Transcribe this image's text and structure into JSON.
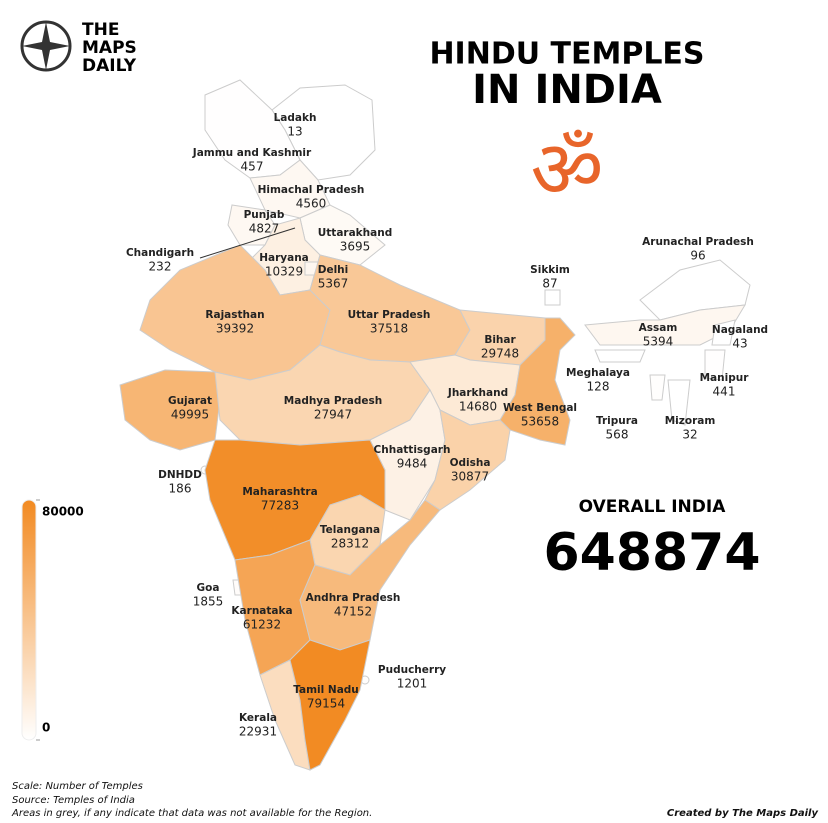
{
  "brand": {
    "line1": "THE",
    "line2": "MAPS",
    "line3": "DAILY"
  },
  "title": {
    "line1": "HINDU TEMPLES",
    "line2": "IN INDIA",
    "symbol": "ॐ"
  },
  "overall": {
    "label": "OVERALL INDIA",
    "value": 648874
  },
  "colorbar": {
    "min": 0,
    "max": 80000,
    "colors": [
      "#ffffff",
      "#f28a21"
    ]
  },
  "regions": [
    {
      "name": "Ladakh",
      "value": 13
    },
    {
      "name": "Jammu and Kashmir",
      "value": 457
    },
    {
      "name": "Himachal Pradesh",
      "value": 4560
    },
    {
      "name": "Punjab",
      "value": 4827
    },
    {
      "name": "Chandigarh",
      "value": 232
    },
    {
      "name": "Uttarakhand",
      "value": 3695
    },
    {
      "name": "Haryana",
      "value": 10329
    },
    {
      "name": "Delhi",
      "value": 5367
    },
    {
      "name": "Rajasthan",
      "value": 39392
    },
    {
      "name": "Uttar Pradesh",
      "value": 37518
    },
    {
      "name": "Bihar",
      "value": 29748
    },
    {
      "name": "Gujarat",
      "value": 49995
    },
    {
      "name": "Madhya Pradesh",
      "value": 27947
    },
    {
      "name": "Jharkhand",
      "value": 14680
    },
    {
      "name": "West Bengal",
      "value": 53658
    },
    {
      "name": "Chhattisgarh",
      "value": 9484
    },
    {
      "name": "Odisha",
      "value": 30877
    },
    {
      "name": "DNHDD",
      "value": 186
    },
    {
      "name": "Maharashtra",
      "value": 77283
    },
    {
      "name": "Telangana",
      "value": 28312
    },
    {
      "name": "Goa",
      "value": 1855
    },
    {
      "name": "Karnataka",
      "value": 61232
    },
    {
      "name": "Andhra Pradesh",
      "value": 47152
    },
    {
      "name": "Puducherry",
      "value": 1201
    },
    {
      "name": "Kerala",
      "value": 22931
    },
    {
      "name": "Tamil Nadu",
      "value": 79154
    },
    {
      "name": "Sikkim",
      "value": 87
    },
    {
      "name": "Arunachal Pradesh",
      "value": 96
    },
    {
      "name": "Assam",
      "value": 5394
    },
    {
      "name": "Nagaland",
      "value": 43
    },
    {
      "name": "Meghalaya",
      "value": 128
    },
    {
      "name": "Manipur",
      "value": 441
    },
    {
      "name": "Tripura",
      "value": 568
    },
    {
      "name": "Mizoram",
      "value": 32
    }
  ],
  "footer": {
    "scale_note": "Scale: Number of Temples",
    "source": "Source: Temples of India",
    "note": "Areas in grey, if any indicate that data was not available for the Region.",
    "credit": "Created by The Maps Daily"
  }
}
